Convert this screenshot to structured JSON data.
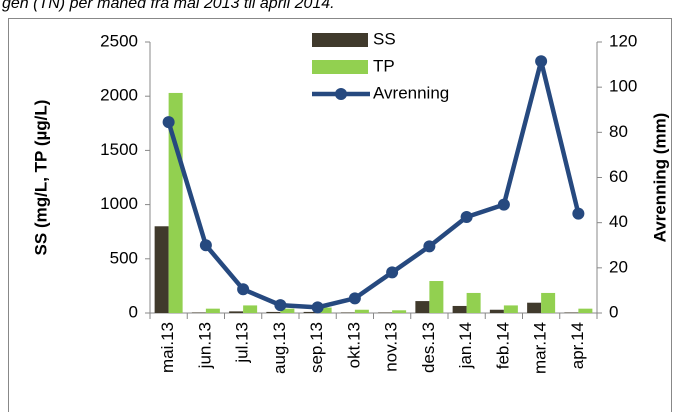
{
  "caption": "gen (TN) per måned fra mai 2013 til april 2014.",
  "chart_data": {
    "type": "bar",
    "categories": [
      "mai.13",
      "jun.13",
      "jul.13",
      "aug.13",
      "sep.13",
      "okt.13",
      "nov.13",
      "des.13",
      "jan.14",
      "feb.14",
      "mar.14",
      "apr.14"
    ],
    "series": [
      {
        "name": "SS",
        "color": "#403a2c",
        "values": [
          800,
          5,
          15,
          10,
          10,
          5,
          5,
          110,
          65,
          30,
          95,
          5
        ]
      },
      {
        "name": "TP",
        "color": "#92d050",
        "values": [
          2030,
          40,
          70,
          40,
          50,
          30,
          25,
          295,
          185,
          70,
          185,
          40
        ]
      },
      {
        "name": "Avrenning",
        "color": "#26497f",
        "type": "line",
        "axis": "y2",
        "values": [
          84.5,
          30,
          10.5,
          3.5,
          2.5,
          6.5,
          18,
          29.5,
          42.5,
          48,
          111.5,
          44
        ]
      }
    ],
    "y_label": "SS (mg/L, TP (µg/L)",
    "y2_label": "Avrenning (mm)",
    "ylim": [
      0,
      2500
    ],
    "yticks": [
      0,
      500,
      1000,
      1500,
      2000,
      2500
    ],
    "y2lim": [
      0,
      120
    ],
    "y2ticks": [
      0,
      20,
      40,
      60,
      80,
      100,
      120
    ],
    "legend": "top"
  }
}
